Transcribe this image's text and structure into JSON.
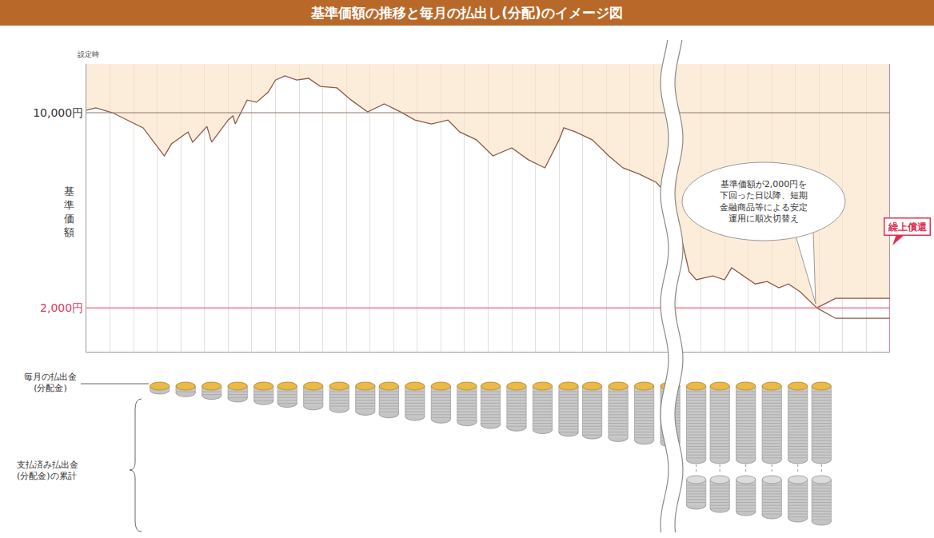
{
  "chart_data": {
    "type": "line",
    "title": "基準価額の推移と毎月の払出し(分配)のイメージ図",
    "y_label": "基準価額",
    "start_label": "設定時",
    "callout": "基準価額が2,000円を\n下回った日以降、短期\n金融商品等による安定\n運用に順次切替え",
    "redemption_label": "繰上償還",
    "payout_label": "毎月の払出金\n(分配金)",
    "cumulative_label": "支払済み払出金\n(分配金)の累計",
    "xlim": [
      0,
      34
    ],
    "xticks": [
      1,
      2,
      3,
      4,
      5,
      6,
      7,
      8,
      9,
      10,
      11,
      12,
      13,
      14,
      15,
      16,
      17,
      18,
      19,
      20,
      21,
      22,
      23,
      24,
      25,
      26,
      27,
      28,
      29,
      30,
      31,
      32,
      33
    ],
    "ylim": [
      200,
      12000
    ],
    "yticks": [
      {
        "value": 10000,
        "label": "10,000円"
      },
      {
        "value": 2000,
        "label": "2,000円"
      }
    ],
    "grid": true,
    "tick_labels": "y",
    "series": [
      {
        "color": "#8b5a4a",
        "x": [
          0,
          0.4,
          1.1,
          2.4,
          3.3,
          3.6,
          4.3,
          4.5,
          5.1,
          5.3,
          6.0,
          6.2,
          6.3,
          6.8,
          7.2,
          7.7,
          8.0,
          8.4,
          8.9,
          9.4,
          9.9,
          10.6,
          11.2,
          11.9,
          12.6,
          13.3,
          13.9,
          14.6,
          15.3,
          15.8,
          16.5,
          17.2,
          18.0,
          18.7,
          19.4,
          20.0,
          20.2,
          20.7,
          21.4,
          22.1,
          22.7,
          23.4,
          24.1,
          24.8,
          25.5,
          25.8,
          26.5,
          27.0,
          27.3,
          27.8,
          28.3,
          28.8,
          29.3,
          29.7,
          30.2,
          30.9
        ],
        "values": [
          10100,
          10200,
          10000,
          9380,
          8230,
          8720,
          9210,
          8790,
          9440,
          8790,
          9700,
          9870,
          9540,
          10520,
          10430,
          10850,
          11340,
          11510,
          11340,
          11410,
          11080,
          11020,
          10520,
          10030,
          10360,
          10030,
          9700,
          9540,
          9700,
          9210,
          8890,
          8230,
          8560,
          8070,
          7740,
          8890,
          9380,
          9210,
          8890,
          8230,
          7740,
          7480,
          7150,
          6430,
          3480,
          3150,
          3310,
          3150,
          3640,
          3310,
          2980,
          3080,
          2820,
          2980,
          2660,
          2000
        ]
      },
      {
        "color": "#8b5a4a",
        "x": [
          30.9,
          31.7,
          34.0
        ],
        "values": [
          2000,
          2390,
          2390
        ]
      },
      {
        "color": "#8b5a4a",
        "x": [
          30.9,
          31.7,
          34.0
        ],
        "values": [
          2000,
          1570,
          1570
        ]
      }
    ],
    "payout_x": [
      3.1,
      4.2,
      5.3,
      6.4,
      7.5,
      8.5,
      9.6,
      10.7,
      11.8,
      12.8,
      13.9,
      15.0,
      16.1,
      17.1,
      18.2,
      19.3,
      20.4,
      21.4,
      22.5,
      23.6,
      24.7,
      25.8,
      26.8,
      27.9,
      29.0,
      30.1,
      31.1
    ]
  }
}
